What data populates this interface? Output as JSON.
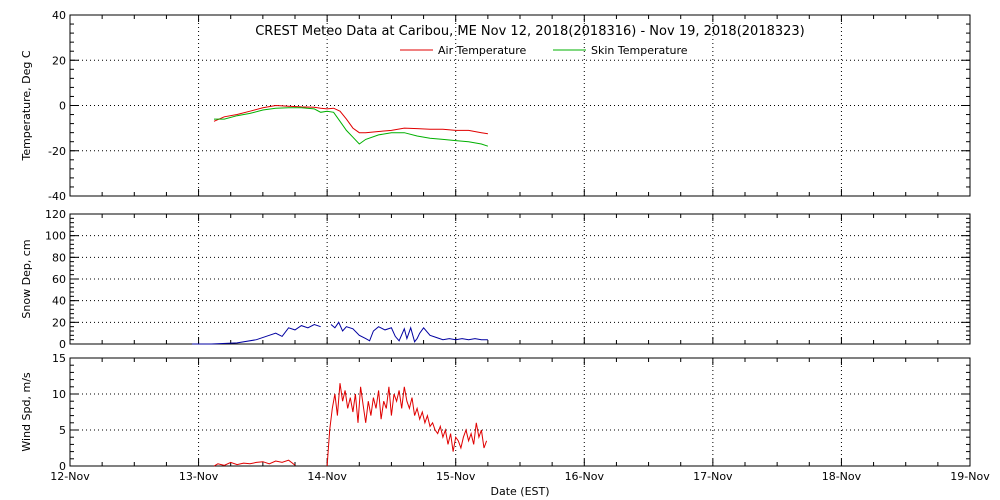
{
  "chart_data": {
    "type": "line",
    "title": "CREST Meteo Data at Caribou, ME   Nov 12, 2018(2018316) - Nov 19, 2018(2018323)",
    "xlabel": "Date (EST)",
    "x_ticks": [
      "12-Nov",
      "13-Nov",
      "14-Nov",
      "15-Nov",
      "16-Nov",
      "17-Nov",
      "18-Nov",
      "19-Nov"
    ],
    "xlim": [
      0,
      7
    ],
    "grid": true,
    "legend_placement": "top-center",
    "panels": [
      {
        "ylabel": "Temperature, Deg C",
        "ylim": [
          -40,
          40
        ],
        "y_ticks": [
          -40,
          -20,
          0,
          20,
          40
        ],
        "series": [
          {
            "name": "Air Temperature",
            "color": "#e00000",
            "x": [
              1.12,
              1.2,
              1.3,
              1.4,
              1.5,
              1.6,
              1.7,
              1.8,
              1.9,
              1.95,
              2.0,
              2.05,
              2.1,
              2.15,
              2.2,
              2.25,
              2.3,
              2.4,
              2.5,
              2.6,
              2.7,
              2.8,
              2.9,
              3.0,
              3.1,
              3.2,
              3.25
            ],
            "y": [
              -7,
              -5,
              -4,
              -2.5,
              -1,
              0,
              -0.3,
              -0.6,
              -0.8,
              -1.2,
              -1.5,
              -1.2,
              -2.5,
              -6,
              -10,
              -12,
              -12,
              -11.5,
              -11,
              -10,
              -10.2,
              -10.5,
              -10.5,
              -11,
              -11,
              -12,
              -12.5
            ]
          },
          {
            "name": "Skin Temperature",
            "color": "#00b000",
            "x": [
              1.12,
              1.2,
              1.3,
              1.4,
              1.5,
              1.6,
              1.7,
              1.8,
              1.9,
              1.95,
              2.0,
              2.05,
              2.1,
              2.15,
              2.2,
              2.25,
              2.3,
              2.4,
              2.5,
              2.6,
              2.7,
              2.8,
              2.9,
              3.0,
              3.1,
              3.2,
              3.25
            ],
            "y": [
              -6,
              -6,
              -4.5,
              -3.5,
              -2,
              -1.2,
              -1,
              -1,
              -1.5,
              -3,
              -2.5,
              -3,
              -7,
              -11,
              -14,
              -17,
              -15,
              -13,
              -12,
              -12,
              -13.5,
              -14.5,
              -15,
              -15.5,
              -16,
              -17,
              -18
            ]
          }
        ]
      },
      {
        "ylabel": "Snow Dep, cm",
        "ylim": [
          0,
          120
        ],
        "y_ticks": [
          0,
          20,
          40,
          60,
          80,
          100,
          120
        ],
        "series": [
          {
            "name": "Snow Depth",
            "color": "#0000a0",
            "segments": [
              {
                "x": [
                  0.95,
                  1.1,
                  1.3,
                  1.45,
                  1.55,
                  1.6,
                  1.65,
                  1.7,
                  1.75,
                  1.8,
                  1.85,
                  1.9,
                  1.95
                ],
                "y": [
                  0,
                  0,
                  1,
                  4,
                  8,
                  10,
                  7,
                  15,
                  13,
                  17,
                  15,
                  18,
                  16
                ]
              },
              {
                "x": [
                  2.03,
                  2.06,
                  2.09,
                  2.12,
                  2.15,
                  2.2,
                  2.25,
                  2.3,
                  2.33,
                  2.36,
                  2.4,
                  2.45,
                  2.5,
                  2.53,
                  2.56,
                  2.6,
                  2.62,
                  2.65,
                  2.68,
                  2.7,
                  2.72,
                  2.75,
                  2.8,
                  2.85,
                  2.9,
                  2.95,
                  3.0,
                  3.05,
                  3.1,
                  3.15,
                  3.2,
                  3.25
                ],
                "y": [
                  18,
                  15,
                  20,
                  12,
                  16,
                  14,
                  8,
                  5,
                  3,
                  12,
                  16,
                  13,
                  15,
                  7,
                  3,
                  14,
                  5,
                  15,
                  2,
                  5,
                  10,
                  15,
                  8,
                  6,
                  4,
                  5,
                  4,
                  5,
                  4,
                  5,
                  4,
                  4
                ]
              }
            ]
          }
        ]
      },
      {
        "ylabel": "Wind Spd, m/s",
        "ylim": [
          0,
          15
        ],
        "y_ticks": [
          0,
          5,
          10,
          15
        ],
        "series": [
          {
            "name": "Wind Speed",
            "color": "#e00000",
            "segments": [
              {
                "x": [
                  1.12,
                  1.15,
                  1.2,
                  1.25,
                  1.3,
                  1.35,
                  1.4,
                  1.45,
                  1.5,
                  1.55,
                  1.6,
                  1.65,
                  1.7,
                  1.73,
                  1.75
                ],
                "y": [
                  0,
                  0.3,
                  0.1,
                  0.5,
                  0.2,
                  0.4,
                  0.3,
                  0.5,
                  0.6,
                  0.3,
                  0.7,
                  0.5,
                  0.8,
                  0.4,
                  0.1
                ]
              },
              {
                "x": [
                  2.0,
                  2.02,
                  2.04,
                  2.06,
                  2.08,
                  2.1,
                  2.12,
                  2.14,
                  2.16,
                  2.18,
                  2.2,
                  2.22,
                  2.24,
                  2.26,
                  2.28,
                  2.3,
                  2.32,
                  2.34,
                  2.36,
                  2.38,
                  2.4,
                  2.42,
                  2.44,
                  2.46,
                  2.48,
                  2.5,
                  2.52,
                  2.54,
                  2.56,
                  2.58,
                  2.6,
                  2.62,
                  2.64,
                  2.66,
                  2.68,
                  2.7,
                  2.72,
                  2.74,
                  2.76,
                  2.78,
                  2.8,
                  2.82,
                  2.84,
                  2.86,
                  2.88,
                  2.9,
                  2.92,
                  2.94,
                  2.96,
                  2.98,
                  3.0,
                  3.02,
                  3.04,
                  3.06,
                  3.08,
                  3.1,
                  3.12,
                  3.14,
                  3.16,
                  3.18,
                  3.2,
                  3.22,
                  3.24
                ],
                "y": [
                  0,
                  5,
                  8,
                  10,
                  7,
                  11.5,
                  9,
                  10.5,
                  8,
                  9.5,
                  7.5,
                  10,
                  6,
                  11,
                  8.5,
                  6,
                  9,
                  7,
                  9.5,
                  8,
                  10.5,
                  6.5,
                  9,
                  8,
                  11,
                  7,
                  10,
                  9,
                  10.5,
                  8,
                  11,
                  9,
                  8,
                  9.5,
                  7,
                  8,
                  6.5,
                  7.5,
                  6,
                  7,
                  5.5,
                  6,
                  5,
                  4.5,
                  5.5,
                  4,
                  5,
                  3,
                  4.5,
                  2,
                  4,
                  3.5,
                  2.5,
                  4,
                  5,
                  3.5,
                  4.5,
                  3,
                  6,
                  4,
                  5,
                  2.5,
                  3.5
                ]
              }
            ]
          }
        ]
      }
    ]
  }
}
